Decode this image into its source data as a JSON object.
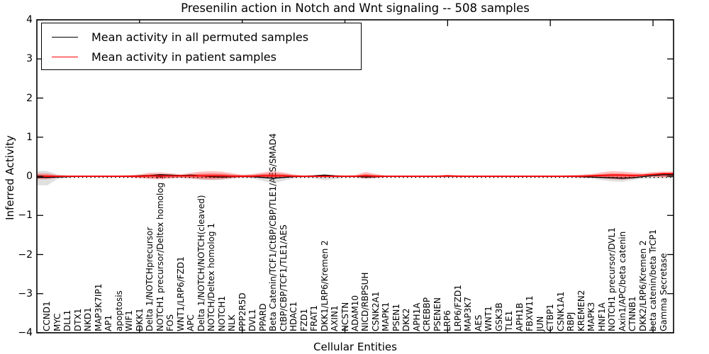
{
  "chart_data": {
    "type": "line",
    "title": "Presenilin action in Notch and Wnt signaling -- 508 samples",
    "xlabel": "Cellular Entities",
    "ylabel": "Inferred Activity",
    "xlim": [
      0,
      62
    ],
    "ylim": [
      -4,
      4
    ],
    "grid": false,
    "zero_line": "dotted black horizontal line at y=0",
    "legend_position": "upper left inside axes",
    "yticks": {
      "values": [
        4,
        3,
        2,
        1,
        0,
        -1,
        -2,
        -3,
        -4
      ],
      "labels": [
        "4",
        "3",
        "2",
        "1",
        "0",
        "−1",
        "−2",
        "−3",
        "−4"
      ]
    },
    "xticks_unlabeled_units": [
      10,
      20,
      30,
      40,
      50,
      60
    ],
    "categories": [
      "CCND1",
      "MYC",
      "DLL1",
      "DTX1",
      "NKD1",
      "MAP3K7IP1",
      "AP1",
      "apoptosis",
      "WIF1",
      "DKK1",
      "Delta 1/NOTCHprecursor",
      "NOTCH1 precursor/Deltex homolog 1",
      "FOS",
      "WNT1/LRP6/FZD1",
      "APC",
      "Delta 1/NOTCH/NOTCH(cleaved)",
      "NOTCH/Deltex homolog 1",
      "NOTCH1",
      "NLK",
      "PPP2R5D",
      "DVL1",
      "PPARD",
      "Beta Catenin/TCF1/CtBP/CBP/TLE1/AES/SMAD4",
      "CtBP/CBP/TCF1/TLE1/AES",
      "HDAC1",
      "FZD1",
      "FRAT1",
      "DKK1/LRP6/Kremen 2",
      "AXIN1",
      "NCSTN",
      "ADAM10",
      "NICD/RBPSUH",
      "CSNK2A1",
      "MAPK1",
      "PSEN1",
      "DKK2",
      "APH1A",
      "CREBBP",
      "PSENEN",
      "LRP6",
      "LRP6/FZD1",
      "MAP3K7",
      "AES",
      "WNT1",
      "GSK3B",
      "TLE1",
      "APH1B",
      "FBXW11",
      "JUN",
      "CTBP1",
      "CSNK1A1",
      "RBPJ",
      "KREMEN2",
      "MAPK3",
      "HNF1A",
      "NOTCH1 precursor/DVL1",
      "Axin1/APC/beta catenin",
      "CTNNB1",
      "DKK2/LRP6/Kremen 2",
      "beta catenin/beta TrCP1",
      "Gamma Secretase"
    ],
    "legend": [
      {
        "label": "Mean activity in all permuted samples",
        "color": "#000000"
      },
      {
        "label": "Mean activity in patient samples",
        "color": "#ff0000"
      }
    ],
    "series": [
      {
        "name": "Mean activity in all permuted samples",
        "color": "#000000",
        "values": [
          -0.03,
          -0.02,
          -0.01,
          0,
          0,
          0,
          0,
          0,
          0,
          0.01,
          0.02,
          0.04,
          0.03,
          0.02,
          0.03,
          0.01,
          -0.01,
          -0.02,
          -0.01,
          0,
          -0.01,
          -0.03,
          -0.05,
          -0.03,
          -0.01,
          0,
          0.01,
          0.03,
          0.01,
          0,
          0,
          -0.02,
          -0.01,
          0,
          0,
          0,
          0,
          0,
          0,
          0,
          0,
          0,
          0,
          0,
          0,
          0,
          0,
          0,
          0,
          0,
          0,
          0,
          -0.01,
          -0.02,
          -0.03,
          -0.04,
          -0.05,
          -0.04,
          -0.01,
          0.02,
          0.04
        ]
      },
      {
        "name": "Mean activity in patient samples",
        "color": "#ff0000",
        "values": [
          0,
          0,
          0,
          0,
          0,
          0,
          0,
          0,
          0,
          0,
          0.01,
          0.01,
          0.01,
          0.01,
          0.01,
          0.01,
          0.01,
          0.01,
          0,
          0,
          0,
          0.01,
          0.01,
          0.01,
          0,
          0,
          0,
          0,
          0,
          0,
          0,
          0.01,
          0,
          0,
          0,
          0,
          0,
          0,
          0,
          0.01,
          0,
          0,
          0,
          0,
          0,
          0,
          0,
          0,
          0,
          0,
          0,
          0,
          0,
          0.01,
          0.02,
          0.03,
          0.03,
          0.02,
          0.03,
          0.05,
          0.07
        ]
      }
    ],
    "bands": [
      {
        "name": "permuted-spread",
        "color": "#999999",
        "upper": [
          0.14,
          0.05,
          0.02,
          0.02,
          0.02,
          0.02,
          0.02,
          0.02,
          0.02,
          0.03,
          0.04,
          0.05,
          0.04,
          0.03,
          0.04,
          0.05,
          0.06,
          0.05,
          0.04,
          0.03,
          0.04,
          0.06,
          0.08,
          0.06,
          0.03,
          0.02,
          0.03,
          0.04,
          0.03,
          0.02,
          0.02,
          0.04,
          0.03,
          0.02,
          0.02,
          0.02,
          0.02,
          0.02,
          0.02,
          0.03,
          0.02,
          0.02,
          0.02,
          0.02,
          0.02,
          0.02,
          0.02,
          0.02,
          0.02,
          0.02,
          0.02,
          0.02,
          0.03,
          0.04,
          0.05,
          0.06,
          0.05,
          0.04,
          0.04,
          0.03,
          0.05
        ],
        "lower": [
          -0.23,
          -0.07,
          -0.03,
          -0.02,
          -0.02,
          -0.02,
          -0.02,
          -0.02,
          -0.02,
          -0.03,
          -0.04,
          -0.05,
          -0.04,
          -0.04,
          -0.06,
          -0.09,
          -0.1,
          -0.09,
          -0.06,
          -0.04,
          -0.06,
          -0.12,
          -0.18,
          -0.12,
          -0.05,
          -0.03,
          -0.05,
          -0.1,
          -0.07,
          -0.03,
          -0.03,
          -0.07,
          -0.05,
          -0.02,
          -0.02,
          -0.02,
          -0.02,
          -0.02,
          -0.02,
          -0.03,
          -0.02,
          -0.02,
          -0.02,
          -0.02,
          -0.02,
          -0.02,
          -0.02,
          -0.02,
          -0.02,
          -0.02,
          -0.02,
          -0.03,
          -0.04,
          -0.05,
          -0.1,
          -0.13,
          -0.14,
          -0.1,
          -0.06,
          -0.06,
          -0.05
        ]
      },
      {
        "name": "patient-spread",
        "color": "#ff0000",
        "upper": [
          0.08,
          0.03,
          0.02,
          0.02,
          0.02,
          0.02,
          0.02,
          0.02,
          0.03,
          0.05,
          0.09,
          0.1,
          0.08,
          0.05,
          0.09,
          0.12,
          0.13,
          0.12,
          0.08,
          0.04,
          0.06,
          0.1,
          0.13,
          0.1,
          0.05,
          0.02,
          0.03,
          0.04,
          0.03,
          0.02,
          0.03,
          0.11,
          0.06,
          0.02,
          0.02,
          0.02,
          0.02,
          0.02,
          0.02,
          0.04,
          0.03,
          0.02,
          0.02,
          0.02,
          0.02,
          0.02,
          0.02,
          0.02,
          0.02,
          0.02,
          0.02,
          0.03,
          0.04,
          0.06,
          0.1,
          0.13,
          0.12,
          0.1,
          0.08,
          0.11,
          0.12
        ],
        "lower": [
          -0.08,
          -0.04,
          -0.02,
          -0.02,
          -0.02,
          -0.02,
          -0.02,
          -0.02,
          -0.03,
          -0.05,
          -0.07,
          -0.08,
          -0.06,
          -0.04,
          -0.06,
          -0.08,
          -0.09,
          -0.08,
          -0.05,
          -0.03,
          -0.03,
          -0.04,
          -0.05,
          -0.04,
          -0.02,
          -0.02,
          -0.02,
          -0.03,
          -0.02,
          -0.02,
          -0.02,
          -0.06,
          -0.04,
          -0.02,
          -0.02,
          -0.02,
          -0.02,
          -0.02,
          -0.02,
          -0.02,
          -0.02,
          -0.02,
          -0.02,
          -0.02,
          -0.02,
          -0.02,
          -0.02,
          -0.02,
          -0.02,
          -0.02,
          -0.02,
          -0.02,
          -0.03,
          -0.04,
          -0.05,
          -0.08,
          -0.09,
          -0.06,
          -0.02,
          -0.01,
          -0.02
        ]
      }
    ]
  }
}
